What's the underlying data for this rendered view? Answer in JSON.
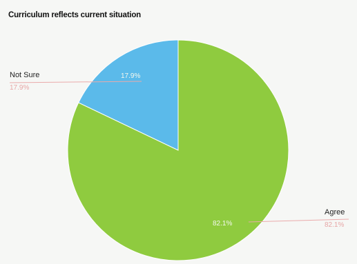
{
  "chart_data": {
    "type": "pie",
    "title": "Curriculum reflects current situation",
    "slices": [
      {
        "label": "Not Sure",
        "value": 17.9,
        "display": "17.9%",
        "color": "#5bbaea"
      },
      {
        "label": "Agree",
        "value": 82.1,
        "display": "82.1%",
        "color": "#8fcb3f"
      }
    ]
  },
  "colors": {
    "leader_line": "#eaaaaa",
    "slice_border": "#ffffff"
  }
}
